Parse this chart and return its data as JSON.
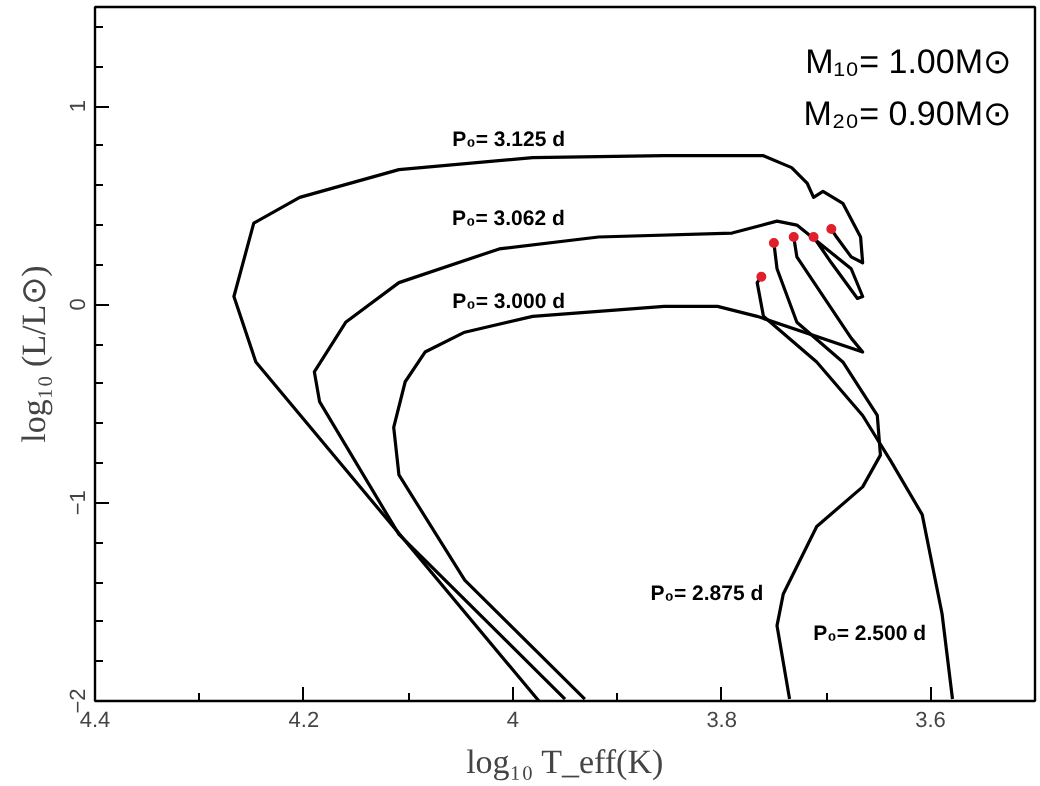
{
  "chart_data": {
    "type": "line",
    "xlabel": "log₁₀ T_eff(K)",
    "ylabel": "log₁₀ (L/L⊙)",
    "xlim": [
      4.4,
      3.5
    ],
    "ylim": [
      -2,
      1.5
    ],
    "xticks": [
      4.4,
      4.2,
      4,
      3.8,
      3.6
    ],
    "yticks": [
      -2,
      -1,
      0,
      1
    ],
    "grid": false,
    "line_style": "solid",
    "annotations": [
      "M₁₀= 1.00M⊙",
      "M₂₀= 0.90M⊙"
    ],
    "series": [
      {
        "name": "P₀= 3.125 d",
        "color": "#000000",
        "x": [
          3.975,
          4.246,
          4.267,
          4.248,
          4.204,
          4.109,
          3.981,
          3.855,
          3.76,
          3.733,
          3.718,
          3.712,
          3.703,
          3.684,
          3.667,
          3.665,
          3.676,
          3.69,
          3.695
        ],
        "values": [
          -2,
          -0.29,
          0.04,
          0.41,
          0.54,
          0.68,
          0.74,
          0.75,
          0.75,
          0.69,
          0.61,
          0.54,
          0.57,
          0.51,
          0.34,
          0.21,
          0.24,
          0.34,
          0.38
        ]
      },
      {
        "name": "P₀= 3.062 d",
        "color": "#000000",
        "x": [
          3.95,
          4.109,
          4.185,
          4.19,
          4.16,
          4.109,
          4.013,
          3.918,
          3.79,
          3.747,
          3.728,
          3.676,
          3.665,
          3.67,
          3.695,
          3.712
        ],
        "values": [
          -1.99,
          -1.16,
          -0.49,
          -0.34,
          -0.09,
          0.11,
          0.28,
          0.34,
          0.36,
          0.42,
          0.4,
          0.18,
          0.04,
          0.03,
          0.21,
          0.34
        ]
      },
      {
        "name": "P₀= 3.000 d",
        "color": "#000000",
        "x": [
          3.931,
          4.046,
          4.109,
          4.114,
          4.103,
          4.084,
          4.046,
          3.981,
          3.855,
          3.804,
          3.766,
          3.665,
          3.676,
          3.728,
          3.731
        ],
        "values": [
          -1.99,
          -1.39,
          -0.86,
          -0.62,
          -0.39,
          -0.24,
          -0.14,
          -0.06,
          -0.01,
          -0.01,
          -0.06,
          -0.24,
          -0.17,
          0.24,
          0.34
        ]
      },
      {
        "name": "P₀= 2.875 d",
        "color": "#000000",
        "x": [
          3.735,
          3.747,
          3.741,
          3.709,
          3.665,
          3.648,
          3.651,
          3.684,
          3.728,
          3.747,
          3.75
        ],
        "values": [
          -1.99,
          -1.62,
          -1.46,
          -1.12,
          -0.92,
          -0.76,
          -0.56,
          -0.29,
          -0.09,
          0.18,
          0.31
        ]
      },
      {
        "name": "P₀= 2.500 d",
        "color": "#000000",
        "x": [
          3.579,
          3.589,
          3.608,
          3.638,
          3.665,
          3.709,
          3.76,
          3.766,
          3.762
        ],
        "values": [
          -1.99,
          -1.56,
          -1.06,
          -0.79,
          -0.56,
          -0.29,
          -0.06,
          0.11,
          0.14
        ]
      },
      {
        "type": "scatter",
        "marker": "circle",
        "color": "#e0202a",
        "x": [
          3.762,
          3.75,
          3.731,
          3.712,
          3.695
        ],
        "values": [
          0.14,
          0.31,
          0.34,
          0.34,
          0.38
        ]
      }
    ]
  }
}
